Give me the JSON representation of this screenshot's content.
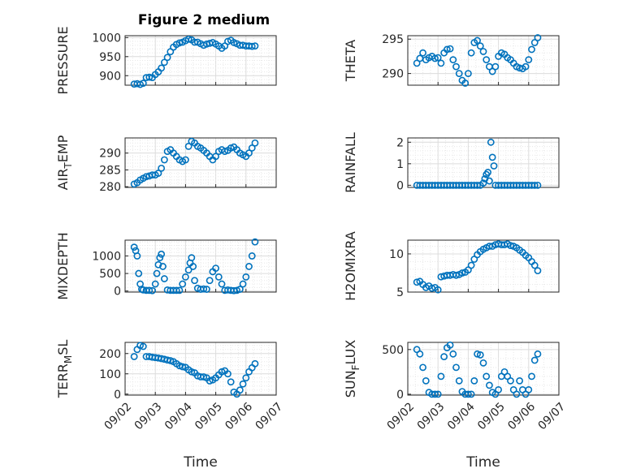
{
  "figure_title": "Figure 2 medium",
  "x_axis_label": "Time",
  "marker_color": "#0072BD",
  "chart_data": [
    {
      "type": "scatter",
      "ylabel": "PRESSURE",
      "xlim": [
        "09/02",
        "09/07"
      ],
      "ylim": [
        875,
        1005
      ],
      "yticks": [
        900,
        950,
        1000
      ],
      "xticks": [
        "09/02",
        "09/03",
        "09/04",
        "09/05",
        "09/06",
        "09/07"
      ],
      "x": [
        2.3,
        2.4,
        2.5,
        2.6,
        2.7,
        2.8,
        2.9,
        3.0,
        3.1,
        3.2,
        3.3,
        3.4,
        3.5,
        3.6,
        3.7,
        3.8,
        3.9,
        4.0,
        4.1,
        4.2,
        4.3,
        4.4,
        4.5,
        4.6,
        4.7,
        4.8,
        4.9,
        5.0,
        5.1,
        5.2,
        5.3,
        5.4,
        5.5,
        5.6,
        5.7,
        5.8,
        5.9,
        6.0,
        6.1,
        6.2,
        6.3
      ],
      "y": [
        878,
        879,
        877,
        880,
        895,
        896,
        895,
        903,
        910,
        920,
        935,
        948,
        963,
        975,
        982,
        986,
        988,
        992,
        996,
        994,
        988,
        988,
        984,
        980,
        983,
        985,
        987,
        983,
        978,
        972,
        978,
        990,
        993,
        987,
        984,
        980,
        980,
        978,
        978,
        977,
        978
      ]
    },
    {
      "type": "scatter",
      "ylabel": "THETA",
      "xlim": [
        "09/02",
        "09/07"
      ],
      "ylim": [
        288.3,
        295.5
      ],
      "yticks": [
        290,
        295
      ],
      "xticks": [
        "09/02",
        "09/03",
        "09/04",
        "09/05",
        "09/06",
        "09/07"
      ],
      "x": [
        2.3,
        2.4,
        2.5,
        2.6,
        2.7,
        2.8,
        2.9,
        3.0,
        3.1,
        3.2,
        3.3,
        3.4,
        3.5,
        3.6,
        3.7,
        3.8,
        3.9,
        4.0,
        4.1,
        4.2,
        4.3,
        4.4,
        4.5,
        4.6,
        4.7,
        4.8,
        4.9,
        5.0,
        5.1,
        5.2,
        5.3,
        5.4,
        5.5,
        5.6,
        5.7,
        5.8,
        5.9,
        6.0,
        6.1,
        6.2,
        6.3
      ],
      "y": [
        291.5,
        292.2,
        293,
        292,
        292.3,
        292.5,
        292.2,
        292.3,
        291.5,
        293,
        293.5,
        293.6,
        292,
        291,
        290,
        289,
        288.6,
        290,
        293,
        294.5,
        294.8,
        294,
        293.2,
        292,
        291,
        290.3,
        291,
        292.5,
        293,
        292.8,
        292.3,
        292,
        291.5,
        291,
        290.8,
        290.7,
        291,
        292,
        293.5,
        294.5,
        295.2
      ]
    },
    {
      "type": "scatter",
      "ylabel": "AIR_TEMP",
      "xlim": [
        "09/02",
        "09/07"
      ],
      "ylim": [
        279.8,
        294.5
      ],
      "yticks": [
        280,
        285,
        290
      ],
      "xticks": [
        "09/02",
        "09/03",
        "09/04",
        "09/05",
        "09/06",
        "09/07"
      ],
      "x": [
        2.3,
        2.4,
        2.5,
        2.6,
        2.7,
        2.8,
        2.9,
        3.0,
        3.1,
        3.2,
        3.3,
        3.4,
        3.5,
        3.6,
        3.7,
        3.8,
        3.9,
        4.0,
        4.1,
        4.2,
        4.3,
        4.4,
        4.5,
        4.6,
        4.7,
        4.8,
        4.9,
        5.0,
        5.1,
        5.2,
        5.3,
        5.4,
        5.5,
        5.6,
        5.7,
        5.8,
        5.9,
        6.0,
        6.1,
        6.2,
        6.3
      ],
      "y": [
        280.8,
        281.2,
        282,
        282.5,
        283,
        283.2,
        283.5,
        283.5,
        284,
        285.5,
        288,
        290.5,
        291,
        290,
        289,
        288,
        287.5,
        288,
        292,
        293.5,
        293,
        292,
        291.5,
        290.8,
        290,
        289,
        288,
        289,
        290.5,
        291,
        290.5,
        290.8,
        291.5,
        291.8,
        291,
        290,
        289.5,
        289,
        290,
        291.5,
        293
      ]
    },
    {
      "type": "scatter",
      "ylabel": "RAINFALL",
      "xlim": [
        "09/02",
        "09/07"
      ],
      "ylim": [
        -0.1,
        2.2
      ],
      "yticks": [
        0,
        1,
        2
      ],
      "xticks": [
        "09/02",
        "09/03",
        "09/04",
        "09/05",
        "09/06",
        "09/07"
      ],
      "x": [
        2.3,
        2.4,
        2.5,
        2.6,
        2.7,
        2.8,
        2.9,
        3.0,
        3.1,
        3.2,
        3.3,
        3.4,
        3.5,
        3.6,
        3.7,
        3.8,
        3.9,
        4.0,
        4.1,
        4.2,
        4.3,
        4.4,
        4.5,
        4.55,
        4.6,
        4.65,
        4.7,
        4.75,
        4.8,
        4.85,
        4.9,
        5.0,
        5.1,
        5.2,
        5.3,
        5.4,
        5.5,
        5.6,
        5.7,
        5.8,
        5.9,
        6.0,
        6.1,
        6.2,
        6.3
      ],
      "y": [
        0,
        0,
        0,
        0,
        0,
        0,
        0,
        0,
        0,
        0,
        0,
        0,
        0,
        0,
        0,
        0,
        0,
        0,
        0,
        0,
        0,
        0,
        0.1,
        0.3,
        0.5,
        0.6,
        0.2,
        2.0,
        1.3,
        0.9,
        0,
        0,
        0,
        0,
        0,
        0,
        0,
        0,
        0,
        0,
        0,
        0,
        0,
        0,
        0
      ]
    },
    {
      "type": "scatter",
      "ylabel": "MIXDEPTH",
      "xlim": [
        "09/02",
        "09/07"
      ],
      "ylim": [
        -30,
        1450
      ],
      "yticks": [
        0,
        500,
        1000
      ],
      "xticks": [
        "09/02",
        "09/03",
        "09/04",
        "09/05",
        "09/06",
        "09/07"
      ],
      "x": [
        2.3,
        2.35,
        2.4,
        2.45,
        2.5,
        2.55,
        2.6,
        2.7,
        2.8,
        2.9,
        3.0,
        3.05,
        3.1,
        3.15,
        3.2,
        3.25,
        3.3,
        3.4,
        3.5,
        3.6,
        3.7,
        3.8,
        3.9,
        4.0,
        4.1,
        4.15,
        4.2,
        4.25,
        4.3,
        4.4,
        4.5,
        4.6,
        4.7,
        4.8,
        4.9,
        5.0,
        5.1,
        5.2,
        5.3,
        5.4,
        5.5,
        5.6,
        5.7,
        5.8,
        5.9,
        6.0,
        6.1,
        6.2,
        6.3
      ],
      "y": [
        1250,
        1150,
        1000,
        500,
        200,
        50,
        30,
        20,
        20,
        10,
        200,
        500,
        750,
        950,
        1050,
        700,
        350,
        30,
        20,
        20,
        20,
        20,
        200,
        400,
        600,
        800,
        950,
        700,
        300,
        80,
        50,
        60,
        50,
        300,
        550,
        650,
        400,
        200,
        20,
        30,
        20,
        10,
        20,
        50,
        200,
        400,
        700,
        1000,
        1400
      ]
    },
    {
      "type": "scatter",
      "ylabel": "H2OMIXRA",
      "xlim": [
        "09/02",
        "09/07"
      ],
      "ylim": [
        5,
        11.8
      ],
      "yticks": [
        5,
        10
      ],
      "xticks": [
        "09/02",
        "09/03",
        "09/04",
        "09/05",
        "09/06",
        "09/07"
      ],
      "x": [
        2.3,
        2.4,
        2.5,
        2.6,
        2.7,
        2.8,
        2.9,
        3.0,
        3.1,
        3.2,
        3.3,
        3.4,
        3.5,
        3.6,
        3.7,
        3.8,
        3.9,
        4.0,
        4.1,
        4.2,
        4.3,
        4.4,
        4.5,
        4.6,
        4.7,
        4.8,
        4.9,
        5.0,
        5.1,
        5.2,
        5.3,
        5.4,
        5.5,
        5.6,
        5.7,
        5.8,
        5.9,
        6.0,
        6.1,
        6.2,
        6.3
      ],
      "y": [
        6.3,
        6.4,
        6.0,
        5.6,
        5.8,
        5.5,
        5.6,
        5.3,
        7.0,
        7.1,
        7.2,
        7.2,
        7.3,
        7.2,
        7.3,
        7.5,
        7.6,
        7.9,
        8.5,
        9.3,
        9.9,
        10.3,
        10.6,
        10.8,
        11.0,
        11.0,
        11.2,
        11.3,
        11.2,
        11.2,
        11.3,
        11.1,
        11.0,
        10.8,
        10.5,
        10.2,
        9.8,
        9.5,
        9.0,
        8.5,
        7.8
      ]
    },
    {
      "type": "scatter",
      "ylabel": "TERR_MSL",
      "xlim": [
        "09/02",
        "09/07"
      ],
      "ylim": [
        -5,
        255
      ],
      "yticks": [
        0,
        100,
        200
      ],
      "xticks": [
        "09/02",
        "09/03",
        "09/04",
        "09/05",
        "09/06",
        "09/07"
      ],
      "x": [
        2.3,
        2.4,
        2.5,
        2.6,
        2.7,
        2.8,
        2.9,
        3.0,
        3.1,
        3.2,
        3.3,
        3.4,
        3.5,
        3.6,
        3.7,
        3.8,
        3.9,
        4.0,
        4.1,
        4.2,
        4.3,
        4.4,
        4.5,
        4.6,
        4.7,
        4.8,
        4.9,
        5.0,
        5.1,
        5.2,
        5.3,
        5.4,
        5.5,
        5.6,
        5.7,
        5.8,
        5.9,
        6.0,
        6.1,
        6.2,
        6.3
      ],
      "y": [
        185,
        220,
        240,
        235,
        185,
        185,
        182,
        180,
        178,
        175,
        172,
        168,
        165,
        160,
        150,
        140,
        135,
        132,
        120,
        110,
        105,
        90,
        85,
        85,
        80,
        65,
        70,
        80,
        95,
        110,
        115,
        100,
        60,
        10,
        0,
        20,
        50,
        80,
        110,
        130,
        150
      ]
    },
    {
      "type": "scatter",
      "ylabel": "SUN_FLUX",
      "xlim": [
        "09/02",
        "09/07"
      ],
      "ylim": [
        -10,
        580
      ],
      "yticks": [
        0,
        500
      ],
      "xticks": [
        "09/02",
        "09/03",
        "09/04",
        "09/05",
        "09/06",
        "09/07"
      ],
      "x": [
        2.3,
        2.4,
        2.5,
        2.6,
        2.7,
        2.8,
        2.9,
        3.0,
        3.1,
        3.2,
        3.3,
        3.4,
        3.5,
        3.6,
        3.7,
        3.8,
        3.9,
        4.0,
        4.1,
        4.2,
        4.3,
        4.4,
        4.5,
        4.6,
        4.7,
        4.8,
        4.9,
        5.0,
        5.1,
        5.2,
        5.3,
        5.4,
        5.5,
        5.6,
        5.7,
        5.8,
        5.9,
        6.0,
        6.1,
        6.2,
        6.3
      ],
      "y": [
        500,
        450,
        300,
        150,
        20,
        0,
        0,
        0,
        200,
        420,
        520,
        550,
        450,
        300,
        150,
        30,
        0,
        0,
        0,
        150,
        450,
        440,
        350,
        200,
        100,
        20,
        0,
        50,
        200,
        250,
        200,
        150,
        50,
        0,
        150,
        50,
        0,
        50,
        200,
        380,
        450
      ]
    }
  ]
}
